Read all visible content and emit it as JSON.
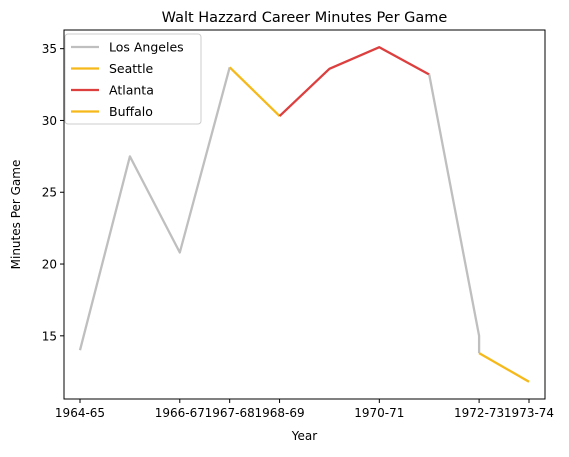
{
  "chart_data": {
    "type": "line",
    "title": "Walt Hazzard Career Minutes Per Game",
    "xlabel": "Year",
    "ylabel": "Minutes Per Game",
    "x": [
      "1964-65",
      "1965-66",
      "1966-67",
      "1967-68",
      "1968-69",
      "1969-70",
      "1970-71",
      "1971-72",
      "1972-73",
      "1973-74"
    ],
    "xticks": [
      "1964-65",
      "1966-67",
      "1967-68",
      "1968-69",
      "1970-71",
      "1972-73",
      "1973-74"
    ],
    "yticks": [
      15,
      20,
      25,
      30,
      35
    ],
    "ylim": [
      10.6,
      36.3
    ],
    "grid": false,
    "legend": "top-left",
    "series": [
      {
        "name": "Los Angeles",
        "color": "#bfbfbf",
        "points": [
          {
            "x": "1964-65",
            "y": 14.0
          },
          {
            "x": "1965-66",
            "y": 27.5
          },
          {
            "x": "1966-67",
            "y": 20.8
          },
          {
            "x": "1967-68",
            "y": 33.7
          }
        ]
      },
      {
        "name": "Seattle",
        "color": "#f6b91a",
        "points": [
          {
            "x": "1967-68",
            "y": 33.7
          },
          {
            "x": "1968-69",
            "y": 30.3
          }
        ]
      },
      {
        "name": "Atlanta",
        "color": "#dd3f3f",
        "points": [
          {
            "x": "1968-69",
            "y": 30.3
          },
          {
            "x": "1969-70",
            "y": 33.6
          },
          {
            "x": "1970-71",
            "y": 35.1
          },
          {
            "x": "1971-72",
            "y": 33.2
          }
        ]
      },
      {
        "name": "Los Angeles",
        "color": "#bfbfbf",
        "points": [
          {
            "x": "1971-72",
            "y": 33.2
          },
          {
            "x": "1972-73",
            "y": 15.0
          },
          {
            "x": "1972-73",
            "y": 13.8
          }
        ]
      },
      {
        "name": "Buffalo",
        "color": "#f6b91a",
        "points": [
          {
            "x": "1972-73",
            "y": 13.8
          },
          {
            "x": "1973-74",
            "y": 11.8
          }
        ]
      }
    ],
    "legend_entries": [
      {
        "name": "Los Angeles",
        "color": "#bfbfbf"
      },
      {
        "name": "Seattle",
        "color": "#f6b91a"
      },
      {
        "name": "Atlanta",
        "color": "#dd3f3f"
      },
      {
        "name": "Buffalo",
        "color": "#f6b91a"
      }
    ]
  }
}
